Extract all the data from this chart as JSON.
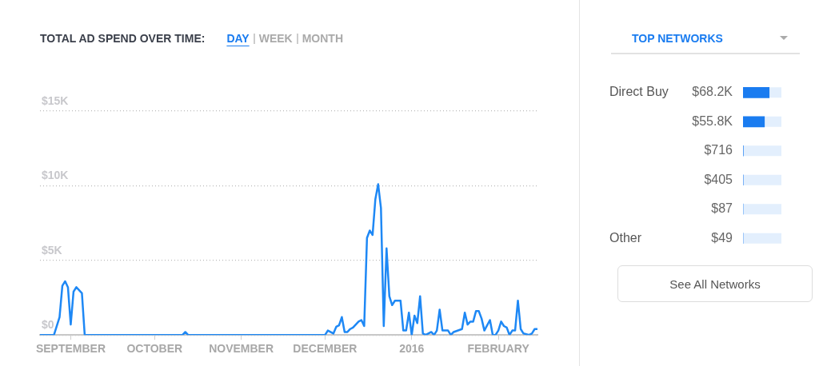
{
  "chart_data": [
    {
      "type": "line",
      "title": "TOTAL AD SPEND OVER TIME:",
      "annotations": [
        "DAY",
        "WEEK",
        "MONTH"
      ],
      "x": [
        "2015-08-21",
        "2015-08-26",
        "2015-08-28",
        "2015-08-29",
        "2015-08-30",
        "2015-08-31",
        "2015-09-01",
        "2015-09-02",
        "2015-09-03",
        "2015-09-05",
        "2015-09-06",
        "2015-10-11",
        "2015-10-12",
        "2015-10-13",
        "2015-12-01",
        "2015-12-02",
        "2015-12-04",
        "2015-12-05",
        "2015-12-06",
        "2015-12-07",
        "2015-12-08",
        "2015-12-09",
        "2015-12-10",
        "2015-12-11",
        "2015-12-13",
        "2015-12-14",
        "2015-12-15",
        "2015-12-16",
        "2015-12-17",
        "2015-12-18",
        "2015-12-19",
        "2015-12-20",
        "2015-12-21",
        "2015-12-22",
        "2015-12-23",
        "2015-12-24",
        "2015-12-25",
        "2015-12-26",
        "2015-12-28",
        "2015-12-29",
        "2015-12-30",
        "2015-12-31",
        "2016-01-01",
        "2016-01-02",
        "2016-01-03",
        "2016-01-04",
        "2016-01-05",
        "2016-01-06",
        "2016-01-08",
        "2016-01-09",
        "2016-01-10",
        "2016-01-11",
        "2016-01-12",
        "2016-01-14",
        "2016-01-15",
        "2016-01-16",
        "2016-01-19",
        "2016-01-20",
        "2016-01-21",
        "2016-01-22",
        "2016-01-23",
        "2016-01-24",
        "2016-01-25",
        "2016-01-26",
        "2016-01-27",
        "2016-01-29",
        "2016-01-30",
        "2016-01-31",
        "2016-02-01",
        "2016-02-02",
        "2016-02-03",
        "2016-02-04",
        "2016-02-05",
        "2016-02-06",
        "2016-02-07",
        "2016-02-08",
        "2016-02-09",
        "2016-02-10",
        "2016-02-12",
        "2016-02-13",
        "2016-02-14",
        "2016-02-15"
      ],
      "series": [
        {
          "color": "#1e88f5",
          "values": [
            0,
            0,
            1200,
            3300,
            3600,
            3200,
            700,
            2900,
            3200,
            2800,
            0,
            0,
            200,
            0,
            0,
            300,
            100,
            550,
            650,
            1200,
            200,
            200,
            400,
            500,
            900,
            1000,
            600,
            6500,
            7000,
            6700,
            9100,
            10100,
            8500,
            600,
            5800,
            2600,
            2000,
            2300,
            2300,
            300,
            300,
            1500,
            0,
            1300,
            800,
            2600,
            100,
            0,
            200,
            0,
            300,
            1700,
            300,
            300,
            0,
            200,
            400,
            1500,
            700,
            900,
            900,
            1600,
            1600,
            1100,
            300,
            1000,
            0,
            0,
            300,
            900,
            600,
            500,
            0,
            300,
            300,
            2300,
            400,
            100,
            0,
            100,
            400,
            400
          ]
        }
      ],
      "xlim": [
        "2015-08-21",
        "2016-02-15"
      ],
      "xticks": [
        {
          "value": "2015-09-01",
          "label": "SEPTEMBER"
        },
        {
          "value": "2015-10-01",
          "label": "OCTOBER"
        },
        {
          "value": "2015-11-01",
          "label": "NOVEMBER"
        },
        {
          "value": "2015-12-01",
          "label": "DECEMBER"
        },
        {
          "value": "2016-01-01",
          "label": "2016"
        },
        {
          "value": "2016-02-01",
          "label": "FEBRUARY"
        }
      ],
      "ylim": [
        0,
        15000
      ],
      "yticks": [
        {
          "value": 0,
          "label": "$0"
        },
        {
          "value": 5000,
          "label": "$5K"
        },
        {
          "value": 10000,
          "label": "$10K"
        },
        {
          "value": 15000,
          "label": "$15K"
        }
      ],
      "grid": "y",
      "marker": "none",
      "line_style": "solid"
    },
    {
      "type": "bar",
      "orientation": "horizontal",
      "title": "TOP NETWORKS",
      "annotations": [
        "See All Networks"
      ],
      "categories": [
        "Direct Buy",
        null,
        null,
        null,
        null,
        "Other"
      ],
      "series": [
        {
          "color": "#1a7cf0",
          "values": [
            68200,
            55800,
            716,
            405,
            87,
            49
          ],
          "value_labels": [
            "$68.2K",
            "$55.8K",
            "$716",
            "$405",
            "$87",
            "$49"
          ]
        }
      ],
      "tick_labels": "y"
    }
  ]
}
